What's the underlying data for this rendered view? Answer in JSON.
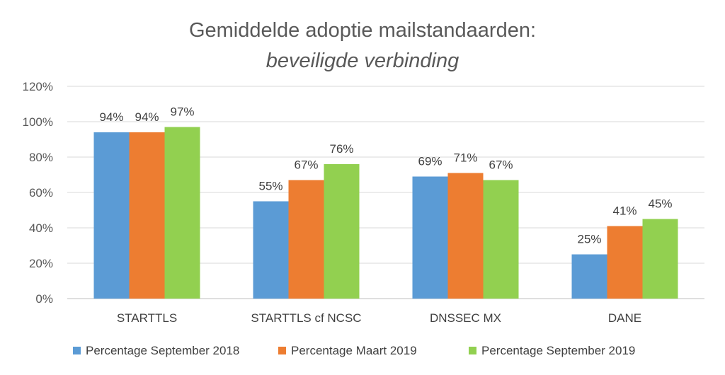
{
  "chart_data": {
    "type": "bar",
    "title": "Gemiddelde adoptie mailstandaarden:",
    "subtitle": "beveiligde verbinding",
    "categories": [
      "STARTTLS",
      "STARTTLS cf NCSC",
      "DNSSEC MX",
      "DANE"
    ],
    "series": [
      {
        "name": "Percentage September 2018",
        "color": "#5B9BD5",
        "values": [
          94,
          55,
          69,
          25
        ],
        "labels": [
          "94%",
          "55%",
          "69%",
          "25%"
        ]
      },
      {
        "name": "Percentage Maart 2019",
        "color": "#ED7D31",
        "values": [
          94,
          67,
          71,
          41
        ],
        "labels": [
          "94%",
          "67%",
          "71%",
          "41%"
        ]
      },
      {
        "name": "Percentage September 2019",
        "color": "#92D050",
        "values": [
          97,
          76,
          67,
          45
        ],
        "labels": [
          "97%",
          "76%",
          "67%",
          "45%"
        ]
      }
    ],
    "ylim": [
      0,
      120
    ],
    "yticks": [
      0,
      20,
      40,
      60,
      80,
      100,
      120
    ],
    "ytick_labels": [
      "0%",
      "20%",
      "40%",
      "60%",
      "80%",
      "100%",
      "120%"
    ],
    "xlabel": "",
    "ylabel": "",
    "grid": true,
    "legend_position": "bottom"
  }
}
